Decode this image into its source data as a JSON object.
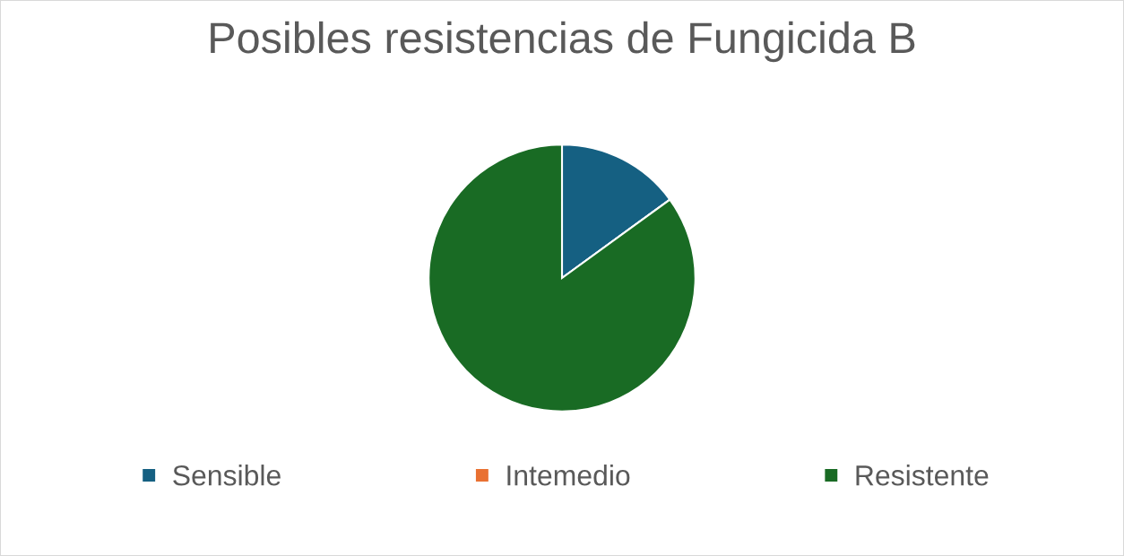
{
  "chart_data": {
    "type": "pie",
    "title": "Posibles resistencias de Fungicida B",
    "categories": [
      "Sensible",
      "Intemedio",
      "Resistente"
    ],
    "values": [
      15,
      0,
      85
    ],
    "colors": [
      "#156082",
      "#e97132",
      "#196b24"
    ],
    "legend": "bottom"
  }
}
